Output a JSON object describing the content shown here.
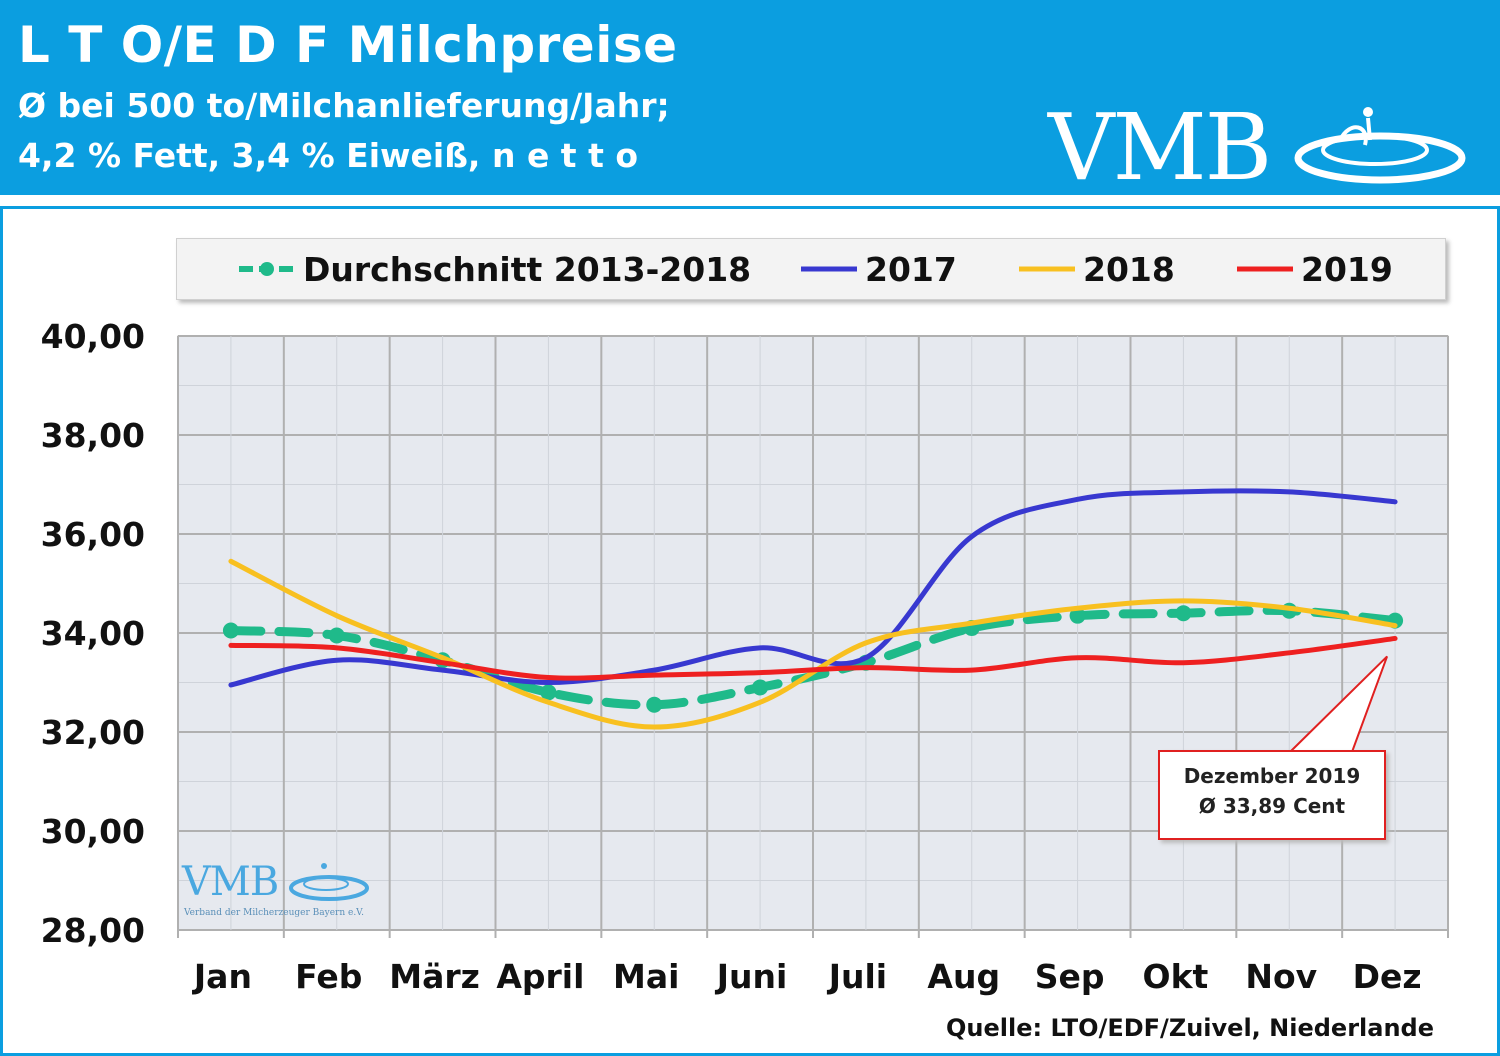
{
  "header": {
    "title": "L T O/E D F Milchpreise",
    "subtitle_line1": "Ø bei 500 to/Milchanlieferung/Jahr;",
    "subtitle_line2": "4,2 % Fett, 3,4 % Eiweiß, n e t t o"
  },
  "logo": {
    "text": "VMB",
    "caption": "Verband der Milcherzeuger Bayern e.V."
  },
  "colors": {
    "header_bg": "#0b9ee0",
    "avg": "#1fba8a",
    "y2017": "#3838d0",
    "y2018": "#f8c020",
    "y2019": "#ee2020",
    "grid": "#b8b8b8",
    "plot_bg": "#e6e9ef"
  },
  "legend": [
    {
      "label": "Durchschnitt 2013-2018",
      "series": "avg"
    },
    {
      "label": "2017",
      "series": "y2017"
    },
    {
      "label": "2018",
      "series": "y2018"
    },
    {
      "label": "2019",
      "series": "y2019"
    }
  ],
  "chart_data": {
    "type": "line",
    "categories": [
      "Jan",
      "Feb",
      "März",
      "April",
      "Mai",
      "Juni",
      "Juli",
      "Aug",
      "Sep",
      "Okt",
      "Nov",
      "Dez"
    ],
    "ylim": [
      28,
      40
    ],
    "y_tick_labels": [
      "40,00",
      "38,00",
      "36,00",
      "34,00",
      "32,00",
      "30,00",
      "28,00"
    ],
    "grid": true,
    "legend_position": "top",
    "series": [
      {
        "name": "Durchschnitt 2013-2018",
        "key": "avg",
        "values": [
          34.05,
          33.95,
          33.45,
          32.8,
          32.55,
          32.9,
          33.4,
          34.1,
          34.35,
          34.4,
          34.45,
          34.25
        ]
      },
      {
        "name": "2017",
        "key": "y2017",
        "values": [
          32.95,
          33.45,
          33.25,
          33.0,
          33.25,
          33.7,
          33.5,
          35.95,
          36.7,
          36.85,
          36.85,
          36.65
        ]
      },
      {
        "name": "2018",
        "key": "y2018",
        "values": [
          35.45,
          34.35,
          33.5,
          32.6,
          32.1,
          32.6,
          33.8,
          34.2,
          34.5,
          34.65,
          34.5,
          34.15
        ]
      },
      {
        "name": "2019",
        "key": "y2019",
        "values": [
          33.75,
          33.7,
          33.4,
          33.1,
          33.15,
          33.2,
          33.3,
          33.25,
          33.5,
          33.4,
          33.6,
          33.89
        ]
      }
    ],
    "annotation": {
      "line1": "Dezember 2019",
      "line2": "Ø 33,89 Cent",
      "target_category": "Dez",
      "target_value": 33.89
    }
  },
  "source": "Quelle: LTO/EDF/Zuivel, Niederlande"
}
